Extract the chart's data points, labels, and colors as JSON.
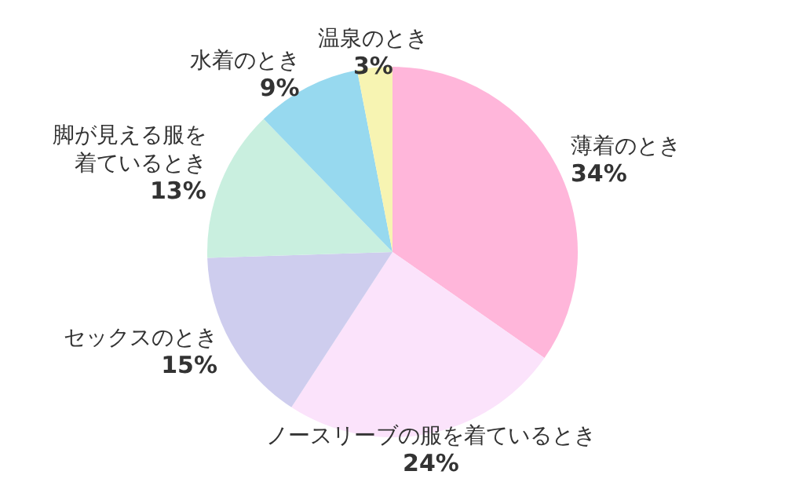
{
  "chart_data": {
    "type": "pie",
    "categories": [
      "薄着のとき",
      "ノースリーブの服を着ているとき",
      "セックスのとき",
      "脚が見える服を着ているとき",
      "水着のとき",
      "温泉のとき"
    ],
    "values": [
      34,
      24,
      15,
      13,
      9,
      3
    ],
    "value_labels": [
      "34%",
      "24%",
      "15%",
      "13%",
      "9%",
      "3%"
    ],
    "colors": [
      "#ffb6da",
      "#fbe3fb",
      "#cecdee",
      "#c9efdf",
      "#97d9ef",
      "#f7f4b2"
    ]
  }
}
